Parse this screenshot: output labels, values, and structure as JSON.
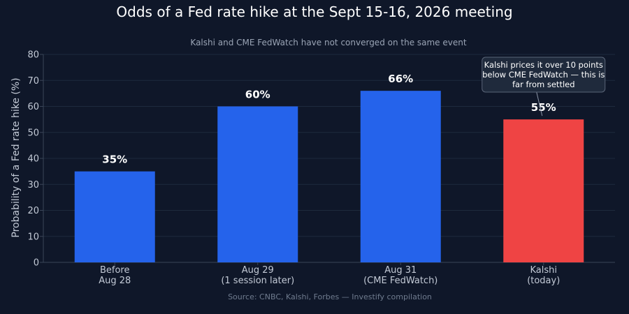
{
  "chart_data": {
    "type": "bar",
    "title": "Odds of a Fed rate hike at the Sept 15-16, 2026 meeting",
    "subtitle": "Kalshi and CME FedWatch have not converged on the same event",
    "ylabel": "Probability of a Fed rate hike (%)",
    "xlabel": "",
    "ylim": [
      0,
      80
    ],
    "yticks": [
      0,
      10,
      20,
      30,
      40,
      50,
      60,
      70,
      80
    ],
    "grid": true,
    "categories": [
      [
        "Before",
        "Aug 28"
      ],
      [
        "Aug 29",
        "(1 session later)"
      ],
      [
        "Aug 31",
        "(CME FedWatch)"
      ],
      [
        "Kalshi",
        "(today)"
      ]
    ],
    "values": [
      35,
      60,
      66,
      55
    ],
    "data_labels": [
      "35%",
      "60%",
      "66%",
      "55%"
    ],
    "bar_colors": [
      "#2563eb",
      "#2563eb",
      "#2563eb",
      "#ef4444"
    ],
    "annotation": {
      "target_index": 3,
      "lines": [
        "Kalshi prices it over 10 points",
        "below CME FedWatch — this is",
        "far from settled"
      ]
    },
    "source": "Source: CNBC, Kalshi, Forbes — Investify compilation"
  }
}
